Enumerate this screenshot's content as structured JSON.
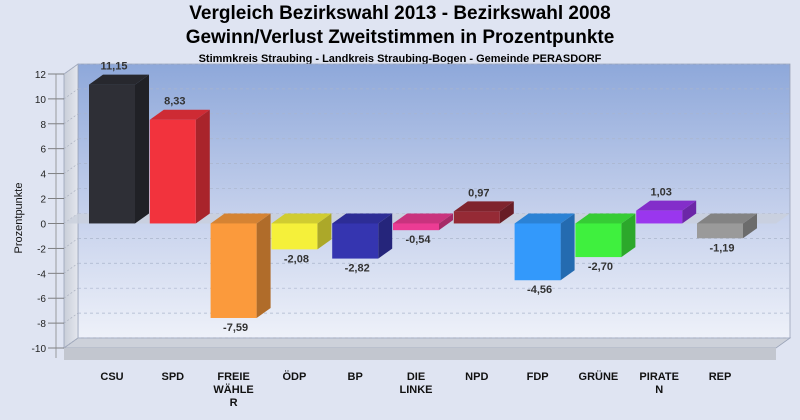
{
  "chart_data": {
    "type": "bar",
    "title": "Vergleich Bezirkswahl 2013 - Bezirkswahl 2008",
    "subtitle": "Gewinn/Verlust Zweitstimmen in Prozentpunkte",
    "subsubtitle": "Stimmkreis Straubing - Landkreis Straubing-Bogen - Gemeinde PERASDORF",
    "ylabel": "Prozentpunkte",
    "xlabel": "",
    "ylim": [
      -10,
      12
    ],
    "yticks": [
      "12",
      "10",
      "8",
      "6",
      "4",
      "2",
      "0",
      "-2",
      "-4",
      "-6",
      "-8",
      "-10"
    ],
    "grid": true,
    "categories": [
      [
        "CSU"
      ],
      [
        "SPD"
      ],
      [
        "FREIE",
        "WÄHLE",
        "R"
      ],
      [
        "ÖDP"
      ],
      [
        "BP"
      ],
      [
        "DIE",
        "LINKE"
      ],
      [
        "NPD"
      ],
      [
        "FDP"
      ],
      [
        "GRÜNE"
      ],
      [
        "PIRATE",
        "N"
      ],
      [
        "REP"
      ]
    ],
    "values": [
      11.15,
      8.33,
      -7.59,
      -2.08,
      -2.82,
      -0.54,
      0.97,
      -4.56,
      -2.7,
      1.03,
      -1.19
    ],
    "labels": [
      "11,15",
      "8,33",
      "-7,59",
      "-2,08",
      "-2,82",
      "-0,54",
      "0,97",
      "-4,56",
      "-2,70",
      "1,03",
      "-1,19"
    ],
    "colors": [
      "#2e2f36",
      "#f2333d",
      "#fb9a3c",
      "#f5f03a",
      "#3535b0",
      "#ec3c94",
      "#952a35",
      "#3399fb",
      "#3ff03e",
      "#9a36ee",
      "#9a9a9a"
    ]
  }
}
